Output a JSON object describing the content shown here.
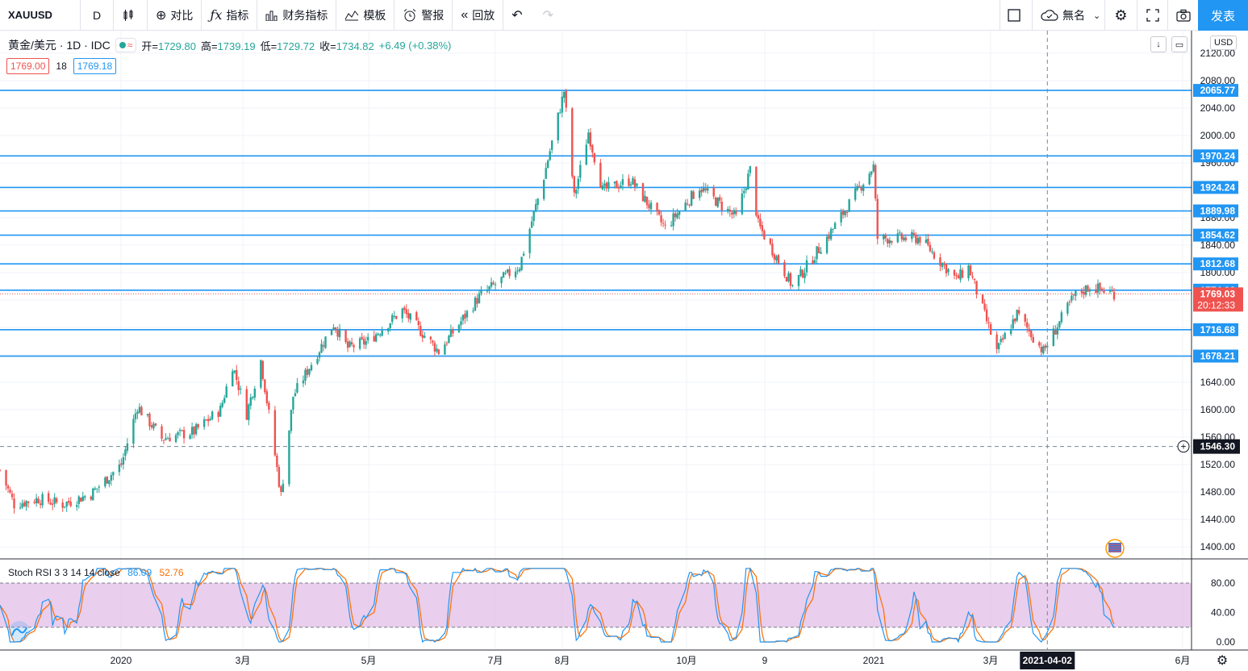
{
  "toolbar": {
    "symbol": "XAUUSD",
    "interval": "D",
    "compare": "对比",
    "indicators": "指标",
    "financials": "财务指标",
    "templates": "模板",
    "alerts": "警报",
    "replay": "回放",
    "layout_name": "無名",
    "publish": "发表"
  },
  "legend": {
    "title": "黄金/美元 · 1D · IDC",
    "open_label": "开=",
    "open": "1729.80",
    "high_label": "高=",
    "high": "1739.19",
    "low_label": "低=",
    "low": "1729.72",
    "close_label": "收=",
    "close": "1734.82",
    "change": "+6.49 (+0.38%)",
    "sell_price": "1769.00",
    "spread": "18",
    "buy_price": "1769.18",
    "currency": "USD"
  },
  "stoch": {
    "label": "Stoch RSI 3 3 14 14 close",
    "k": "86.09",
    "d": "52.76"
  },
  "price_axis": {
    "ticks": [
      "2120.00",
      "2080.00",
      "2040.00",
      "2000.00",
      "1960.00",
      "1920.00",
      "1880.00",
      "1840.00",
      "1800.00",
      "1760.00",
      "1720.00",
      "1680.00",
      "1640.00",
      "1600.00",
      "1560.00",
      "1520.00",
      "1480.00",
      "1440.00",
      "1400.00"
    ],
    "horizontal_lines": [
      "2065.77",
      "1970.24",
      "1924.24",
      "1889.98",
      "1854.62",
      "1812.68",
      "1774.36",
      "1716.68",
      "1678.21"
    ],
    "current_price": "1769.03",
    "countdown": "20:12:33",
    "crosshair_price": "1546.30"
  },
  "stoch_axis": {
    "ticks": [
      "80.00",
      "40.00",
      "0.00"
    ]
  },
  "time_axis": {
    "labels": [
      "2020",
      "3月",
      "5月",
      "7月",
      "8月",
      "10月",
      "9",
      "2021",
      "3月",
      "6月"
    ],
    "crosshair_date": "2021-04-02"
  },
  "colors": {
    "up": "#26a69a",
    "down": "#ef5350",
    "hline": "#2196f3",
    "accent": "#2196f3",
    "stoch_k": "#2196f3",
    "stoch_d": "#ff6d00",
    "stoch_band": "#e1bee7"
  },
  "chart_data": {
    "type": "candlestick",
    "symbol": "XAUUSD",
    "interval": "1D",
    "ylim": [
      1380,
      2130
    ],
    "date_range": [
      "2019-11-01",
      "2021-05-05"
    ],
    "ohlc_current": {
      "open": 1729.8,
      "high": 1739.19,
      "low": 1729.72,
      "close": 1734.82
    },
    "close_path": [
      [
        "2019-11-01",
        1512
      ],
      [
        "2019-11-08",
        1462
      ],
      [
        "2019-11-20",
        1470
      ],
      [
        "2019-12-02",
        1462
      ],
      [
        "2019-12-16",
        1477
      ],
      [
        "2019-12-31",
        1520
      ],
      [
        "2020-01-08",
        1605
      ],
      [
        "2020-01-20",
        1558
      ],
      [
        "2020-02-05",
        1568
      ],
      [
        "2020-02-18",
        1600
      ],
      [
        "2020-02-24",
        1665
      ],
      [
        "2020-03-02",
        1594
      ],
      [
        "2020-03-09",
        1672
      ],
      [
        "2020-03-19",
        1475
      ],
      [
        "2020-03-25",
        1620
      ],
      [
        "2020-04-14",
        1725
      ],
      [
        "2020-04-21",
        1690
      ],
      [
        "2020-05-01",
        1700
      ],
      [
        "2020-05-18",
        1745
      ],
      [
        "2020-06-05",
        1685
      ],
      [
        "2020-06-25",
        1765
      ],
      [
        "2020-07-15",
        1810
      ],
      [
        "2020-07-27",
        1940
      ],
      [
        "2020-08-06",
        2065
      ],
      [
        "2020-08-11",
        1910
      ],
      [
        "2020-08-18",
        2005
      ],
      [
        "2020-08-25",
        1920
      ],
      [
        "2020-09-08",
        1935
      ],
      [
        "2020-09-25",
        1865
      ],
      [
        "2020-10-12",
        1925
      ],
      [
        "2020-10-30",
        1880
      ],
      [
        "2020-11-06",
        1950
      ],
      [
        "2020-11-10",
        1870
      ],
      [
        "2020-11-27",
        1780
      ],
      [
        "2020-12-15",
        1855
      ],
      [
        "2021-01-06",
        1955
      ],
      [
        "2021-01-08",
        1850
      ],
      [
        "2021-01-29",
        1850
      ],
      [
        "2021-02-16",
        1790
      ],
      [
        "2021-02-22",
        1808
      ],
      [
        "2021-03-08",
        1685
      ],
      [
        "2021-03-18",
        1740
      ],
      [
        "2021-03-31",
        1685
      ],
      [
        "2021-04-15",
        1765
      ],
      [
        "2021-04-23",
        1780
      ],
      [
        "2021-05-04",
        1770
      ]
    ],
    "series": [
      {
        "name": "Stoch RSI %K",
        "last": 86.09
      },
      {
        "name": "Stoch RSI %D",
        "last": 52.76
      }
    ]
  }
}
